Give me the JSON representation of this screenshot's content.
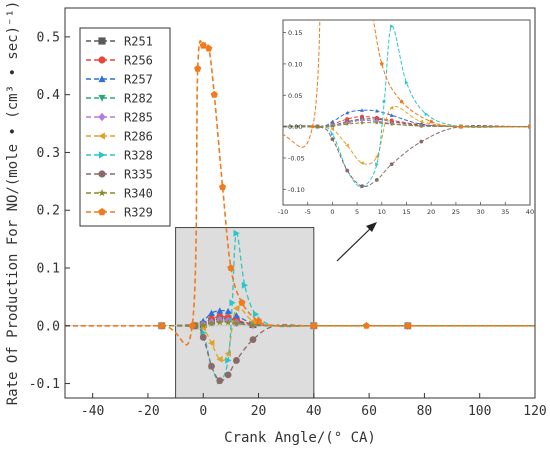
{
  "chart_data": {
    "type": "line",
    "xlabel": "Crank Angle/(° CA)",
    "ylabel": "Rate Of Production For NO/(mole • (cm³ • sec)⁻¹)",
    "xlim": [
      -50,
      120
    ],
    "ylim": [
      -0.125,
      0.55
    ],
    "xticks": [
      "-40",
      "-20",
      "0",
      "20",
      "40",
      "60",
      "80",
      "100",
      "120"
    ],
    "yticks": [
      "-0.1",
      "0.0",
      "0.1",
      "0.2",
      "0.3",
      "0.4",
      "0.5"
    ],
    "legend_position": "top-left",
    "zoom_region": {
      "x": [
        -10,
        40
      ],
      "y": [
        -0.125,
        0.17
      ]
    },
    "series": [
      {
        "name": "R251",
        "color": "#5a5a5a",
        "marker": "square",
        "x": [
          -50,
          -15,
          -3,
          0,
          3,
          6,
          9,
          12,
          18,
          26,
          40,
          74,
          120
        ],
        "y": [
          0,
          0,
          0,
          0.002,
          0.008,
          0.012,
          0.012,
          0.008,
          0.002,
          0,
          0,
          0,
          0
        ]
      },
      {
        "name": "R256",
        "color": "#e8453c",
        "marker": "circle",
        "x": [
          -50,
          -15,
          -3,
          0,
          3,
          6,
          9,
          12,
          18,
          26,
          40,
          74,
          120
        ],
        "y": [
          0,
          0,
          0,
          0.004,
          0.012,
          0.016,
          0.014,
          0.01,
          0.003,
          0,
          0,
          0,
          0
        ]
      },
      {
        "name": "R257",
        "color": "#2f6fd6",
        "marker": "triangle-up",
        "x": [
          -50,
          -15,
          -3,
          0,
          3,
          6,
          9,
          12,
          18,
          26,
          40,
          74,
          120
        ],
        "y": [
          0,
          0,
          0,
          0.008,
          0.022,
          0.026,
          0.025,
          0.018,
          0.004,
          0,
          0,
          0,
          0
        ]
      },
      {
        "name": "R282",
        "color": "#2aa87a",
        "marker": "triangle-down",
        "x": [
          -50,
          -15,
          -3,
          0,
          3,
          6,
          9,
          12,
          18,
          26,
          40,
          74,
          120
        ],
        "y": [
          0,
          0,
          0,
          0.002,
          0.006,
          0.01,
          0.008,
          0.004,
          0.001,
          0,
          0,
          0,
          0
        ]
      },
      {
        "name": "R285",
        "color": "#b77be0",
        "marker": "diamond",
        "x": [
          -50,
          -15,
          -3,
          0,
          3,
          6,
          9,
          12,
          18,
          26,
          40,
          74,
          120
        ],
        "y": [
          0,
          0,
          0,
          0.002,
          0.006,
          0.01,
          0.009,
          0.005,
          0.001,
          0,
          0,
          0,
          0
        ]
      },
      {
        "name": "R286",
        "color": "#e0a32a",
        "marker": "triangle-left",
        "x": [
          -50,
          -15,
          -3,
          0,
          3,
          6,
          9,
          12,
          18,
          26,
          40,
          74,
          120
        ],
        "y": [
          0,
          0,
          0,
          -0.004,
          -0.03,
          -0.058,
          -0.048,
          0.03,
          0.008,
          0,
          0,
          0,
          0
        ]
      },
      {
        "name": "R328",
        "color": "#2ec4c8",
        "marker": "triangle-right",
        "x": [
          -50,
          -15,
          -3,
          0,
          3,
          6,
          9,
          10.5,
          12,
          15,
          19,
          26,
          40,
          74,
          120
        ],
        "y": [
          0,
          0,
          0,
          -0.012,
          -0.07,
          -0.096,
          -0.06,
          0.04,
          0.16,
          0.07,
          0.02,
          0,
          0,
          0,
          0
        ]
      },
      {
        "name": "R335",
        "color": "#8a6a68",
        "marker": "circle",
        "x": [
          -50,
          -15,
          -3,
          0,
          3,
          6,
          9,
          12,
          18,
          26,
          40,
          74,
          120
        ],
        "y": [
          0,
          0,
          0,
          -0.02,
          -0.07,
          -0.095,
          -0.085,
          -0.06,
          -0.024,
          0,
          0,
          0,
          0
        ]
      },
      {
        "name": "R340",
        "color": "#8a8a2a",
        "marker": "star",
        "x": [
          -50,
          -15,
          -3,
          0,
          3,
          6,
          9,
          12,
          18,
          26,
          40,
          74,
          120
        ],
        "y": [
          0,
          0,
          0,
          0.001,
          0.004,
          0.006,
          0.006,
          0.004,
          0.001,
          0,
          0,
          0,
          0
        ]
      },
      {
        "name": "R329",
        "color": "#f07a1c",
        "marker": "pentagon",
        "x": [
          -50,
          -15,
          -4,
          -2,
          0,
          2,
          4,
          7,
          10,
          14,
          20,
          26,
          40,
          59,
          74,
          120
        ],
        "y": [
          0,
          0,
          0,
          0.445,
          0.485,
          0.48,
          0.4,
          0.24,
          0.1,
          0.04,
          0.008,
          0,
          0,
          0,
          0,
          0
        ]
      }
    ]
  }
}
